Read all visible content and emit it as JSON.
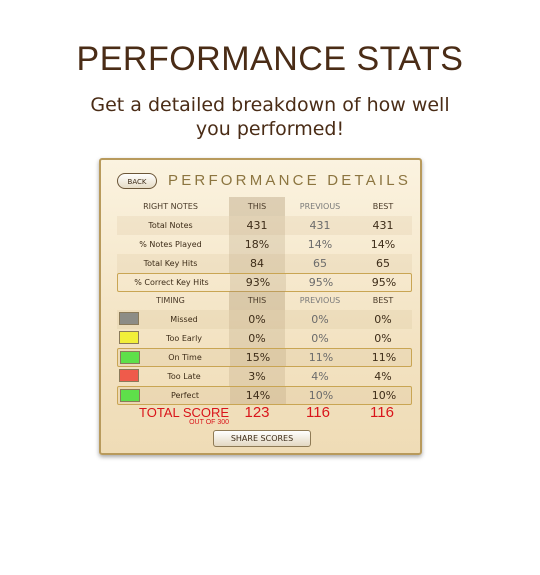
{
  "page": {
    "title": "PERFORMANCE STATS",
    "subtitle": "Get a detailed breakdown of how well you performed!"
  },
  "panel": {
    "back_label": "BACK",
    "title": "PERFORMANCE DETAILS",
    "notes_header": {
      "label": "RIGHT NOTES",
      "this": "THIS",
      "previous": "PREVIOUS",
      "best": "BEST"
    },
    "notes_rows": [
      {
        "label": "Total Notes",
        "this": "431",
        "previous": "431",
        "best": "431"
      },
      {
        "label": "% Notes Played",
        "this": "18%",
        "previous": "14%",
        "best": "14%"
      },
      {
        "label": "Total Key Hits",
        "this": "84",
        "previous": "65",
        "best": "65"
      },
      {
        "label": "% Correct Key Hits",
        "this": "93%",
        "previous": "95%",
        "best": "95%"
      }
    ],
    "timing_header": {
      "label": "TIMING",
      "this": "THIS",
      "previous": "PREVIOUS",
      "best": "BEST"
    },
    "timing_rows": [
      {
        "label": "Missed",
        "color": "#8c8c86",
        "this": "0%",
        "previous": "0%",
        "best": "0%"
      },
      {
        "label": "Too Early",
        "color": "#f2ef3a",
        "this": "0%",
        "previous": "0%",
        "best": "0%"
      },
      {
        "label": "On Time",
        "color": "#5ee04a",
        "this": "15%",
        "previous": "11%",
        "best": "11%"
      },
      {
        "label": "Too Late",
        "color": "#ef5b4b",
        "this": "3%",
        "previous": "4%",
        "best": "4%"
      },
      {
        "label": "Perfect",
        "color": "#5ee04a",
        "this": "14%",
        "previous": "10%",
        "best": "10%"
      }
    ],
    "total_score": {
      "label": "TOTAL SCORE",
      "sub": "OUT OF 300",
      "this": "123",
      "previous": "116",
      "best": "116"
    },
    "share_label": "SHARE SCORES"
  },
  "colors": {
    "title": "#4a2c16",
    "score": "#d9141a",
    "border": "#c9a553"
  }
}
